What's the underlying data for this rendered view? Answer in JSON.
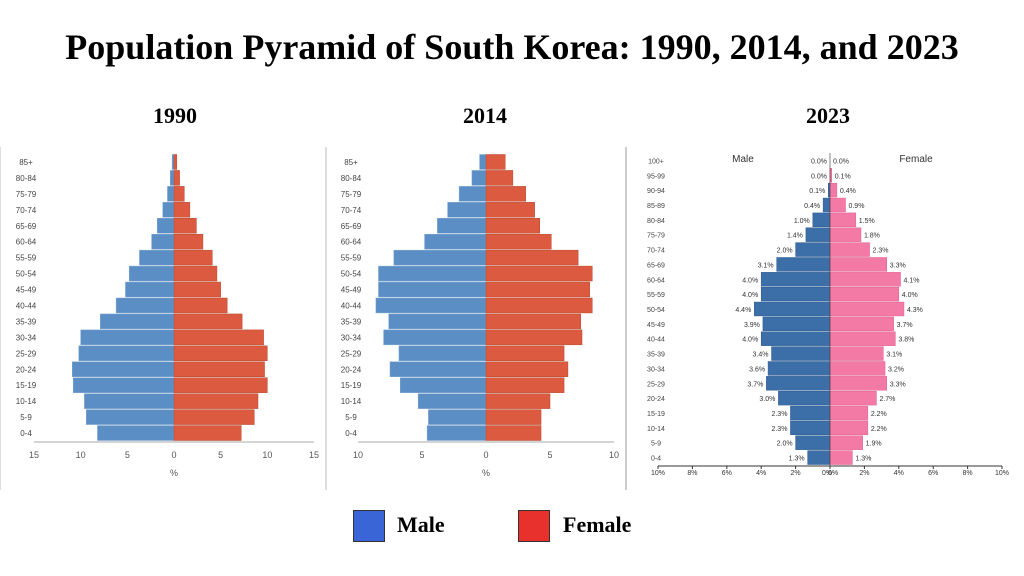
{
  "title": "Population Pyramid of South Korea: 1990, 2014, and 2023",
  "legend": {
    "male_label": "Male",
    "female_label": "Female",
    "male_color": "#3a65d6",
    "female_color": "#e8302c"
  },
  "chart_data": [
    {
      "type": "bar",
      "title": "1990",
      "orientation": "horizontal-pyramid",
      "xlabel": "%",
      "xlim": [
        -15,
        15
      ],
      "x_ticks": [
        "15",
        "10",
        "5",
        "0",
        "5",
        "10",
        "15"
      ],
      "categories": [
        "0-4",
        "5-9",
        "10-14",
        "15-19",
        "20-24",
        "25-29",
        "30-34",
        "35-39",
        "40-44",
        "45-49",
        "50-54",
        "55-59",
        "60-64",
        "65-69",
        "70-74",
        "75-79",
        "80-84",
        "85+"
      ],
      "series": [
        {
          "name": "Male",
          "color": "#5b8ec4",
          "values": [
            8.2,
            9.4,
            9.6,
            10.8,
            10.9,
            10.2,
            10.0,
            7.9,
            6.2,
            5.2,
            4.8,
            3.7,
            2.4,
            1.8,
            1.2,
            0.7,
            0.4,
            0.2
          ]
        },
        {
          "name": "Female",
          "color": "#dc5a40",
          "values": [
            7.2,
            8.6,
            9.0,
            10.0,
            9.7,
            10.0,
            9.6,
            7.3,
            5.7,
            5.0,
            4.6,
            4.1,
            3.1,
            2.4,
            1.7,
            1.1,
            0.6,
            0.3
          ]
        }
      ]
    },
    {
      "type": "bar",
      "title": "2014",
      "orientation": "horizontal-pyramid",
      "xlabel": "%",
      "xlim": [
        -10,
        10
      ],
      "x_ticks": [
        "10",
        "5",
        "0",
        "5",
        "10"
      ],
      "categories": [
        "0-4",
        "5-9",
        "10-14",
        "15-19",
        "20-24",
        "25-29",
        "30-34",
        "35-39",
        "40-44",
        "45-49",
        "50-54",
        "55-59",
        "60-64",
        "65-69",
        "70-74",
        "75-79",
        "80-84",
        "85+"
      ],
      "series": [
        {
          "name": "Male",
          "color": "#5b8ec4",
          "values": [
            4.6,
            4.5,
            5.3,
            6.7,
            7.5,
            6.8,
            8.0,
            7.6,
            8.6,
            8.4,
            8.4,
            7.2,
            4.8,
            3.8,
            3.0,
            2.1,
            1.1,
            0.5
          ]
        },
        {
          "name": "Female",
          "color": "#dc5a40",
          "values": [
            4.3,
            4.3,
            5.0,
            6.1,
            6.4,
            6.1,
            7.5,
            7.4,
            8.3,
            8.1,
            8.3,
            7.2,
            5.1,
            4.2,
            3.8,
            3.1,
            2.1,
            1.5
          ]
        }
      ]
    },
    {
      "type": "bar",
      "title": "2023",
      "orientation": "horizontal-pyramid",
      "xlim": [
        -10,
        10
      ],
      "x_ticks": [
        "10%",
        "8%",
        "6%",
        "4%",
        "2%",
        "0%",
        "0%",
        "2%",
        "4%",
        "6%",
        "8%",
        "10%"
      ],
      "male_header": "Male",
      "female_header": "Female",
      "categories": [
        "0-4",
        "5-9",
        "10-14",
        "15-19",
        "20-24",
        "25-29",
        "30-34",
        "35-39",
        "40-44",
        "45-49",
        "50-54",
        "55-59",
        "60-64",
        "65-69",
        "70-74",
        "75-79",
        "80-84",
        "85-89",
        "90-94",
        "95-99",
        "100+"
      ],
      "series": [
        {
          "name": "Male",
          "color": "#3c6ea8",
          "values": [
            1.3,
            2.0,
            2.3,
            2.3,
            3.0,
            3.7,
            3.6,
            3.4,
            4.0,
            3.9,
            4.4,
            4.0,
            4.0,
            3.1,
            2.0,
            1.4,
            1.0,
            0.4,
            0.1,
            0.0,
            0.0
          ],
          "labels": [
            "1.3%",
            "2.0%",
            "2.3%",
            "2.3%",
            "3.0%",
            "3.7%",
            "3.6%",
            "3.4%",
            "4.0%",
            "3.9%",
            "4.4%",
            "4.0%",
            "4.0%",
            "3.1%",
            "2.0%",
            "1.4%",
            "1.0%",
            "0.4%",
            "0.1%",
            "0.0%",
            "0.0%"
          ]
        },
        {
          "name": "Female",
          "color": "#f27aa4",
          "values": [
            1.3,
            1.9,
            2.2,
            2.2,
            2.7,
            3.3,
            3.2,
            3.1,
            3.8,
            3.7,
            4.3,
            4.0,
            4.1,
            3.3,
            2.3,
            1.8,
            1.5,
            0.9,
            0.4,
            0.1,
            0.0
          ],
          "labels": [
            "1.3%",
            "1.9%",
            "2.2%",
            "2.2%",
            "2.7%",
            "3.3%",
            "3.2%",
            "3.1%",
            "3.8%",
            "3.7%",
            "4.3%",
            "4.0%",
            "4.1%",
            "3.3%",
            "2.3%",
            "1.8%",
            "1.5%",
            "0.9%",
            "0.4%",
            "0.1%",
            "0.0%"
          ]
        }
      ]
    }
  ]
}
